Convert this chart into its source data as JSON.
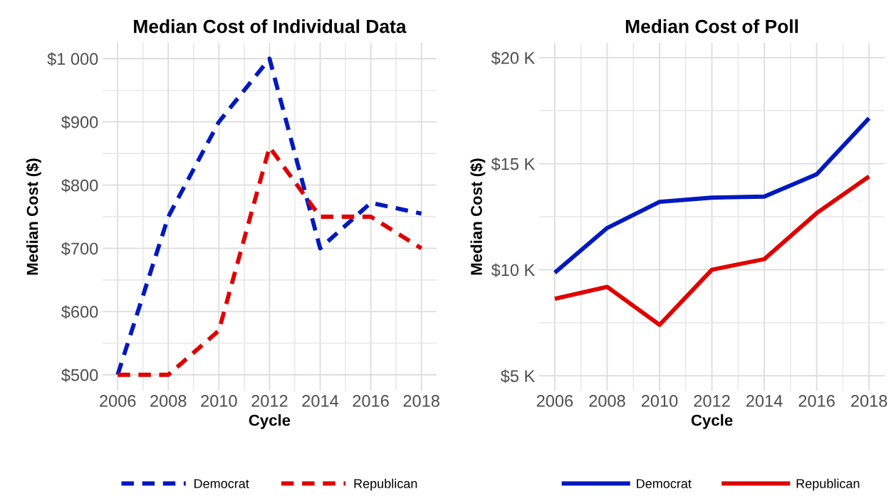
{
  "chart_data": [
    {
      "type": "line",
      "title": "Median Cost of Individual Data",
      "xlabel": "Cycle",
      "ylabel": "Median Cost ($)",
      "x": [
        2006,
        2008,
        2010,
        2012,
        2014,
        2016,
        2018
      ],
      "series": [
        {
          "name": "Democrat",
          "color": "#0019bf",
          "values": [
            500,
            750,
            900,
            1000,
            700,
            772,
            755
          ]
        },
        {
          "name": "Republican",
          "color": "#e00000",
          "values": [
            500,
            500,
            570,
            860,
            750,
            750,
            700
          ]
        }
      ],
      "xlim": [
        2005.4,
        2018.6
      ],
      "xticks": [
        2006,
        2008,
        2010,
        2012,
        2014,
        2016,
        2018
      ],
      "ylim": [
        475,
        1025
      ],
      "yticks": [
        {
          "value": 500,
          "label": "$500"
        },
        {
          "value": 600,
          "label": "$600"
        },
        {
          "value": 700,
          "label": "$700"
        },
        {
          "value": 800,
          "label": "$800"
        },
        {
          "value": 900,
          "label": "$900"
        },
        {
          "value": 1000,
          "label": "$1 000"
        }
      ],
      "grid": true,
      "legend": "bottom",
      "line_style": "dashed",
      "marker": "none"
    },
    {
      "type": "line",
      "title": "Median Cost of Poll",
      "xlabel": "Cycle",
      "ylabel": "Median Cost ($)",
      "x": [
        2006,
        2008,
        2010,
        2012,
        2014,
        2016,
        2018
      ],
      "series": [
        {
          "name": "Democrat",
          "color": "#0019bf",
          "values": [
            9.86,
            11.97,
            13.2,
            13.4,
            13.45,
            14.5,
            17.15
          ]
        },
        {
          "name": "Republican",
          "color": "#e00000",
          "values": [
            8.63,
            9.19,
            7.4,
            10.0,
            10.5,
            12.67,
            14.4
          ]
        }
      ],
      "xlim": [
        2005.4,
        2018.6
      ],
      "xticks": [
        2006,
        2008,
        2010,
        2012,
        2014,
        2016,
        2018
      ],
      "ylim": [
        4.3,
        20.7
      ],
      "yticks": [
        {
          "value": 5,
          "label": "$5 K"
        },
        {
          "value": 10,
          "label": "$10 K"
        },
        {
          "value": 15,
          "label": "$15 K"
        },
        {
          "value": 20,
          "label": "$20 K"
        }
      ],
      "grid": true,
      "legend": "bottom",
      "line_style": "solid",
      "marker": "none"
    }
  ]
}
